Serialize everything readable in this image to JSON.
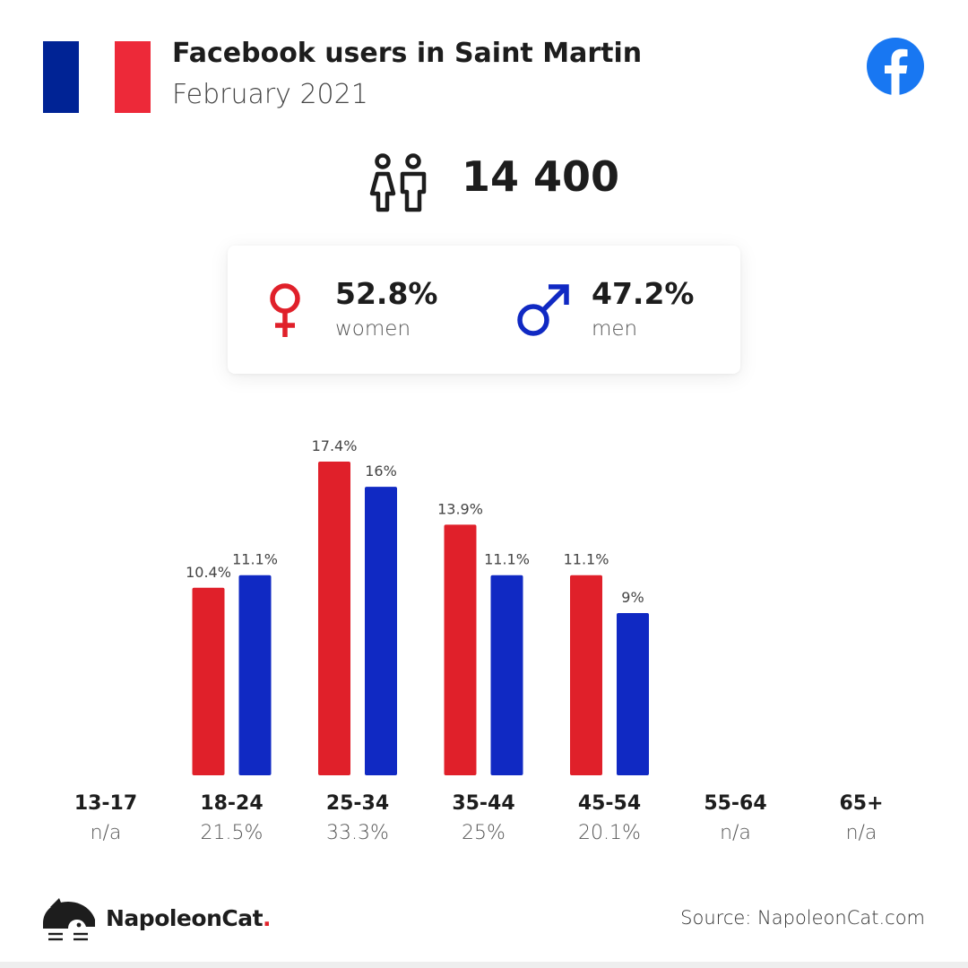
{
  "header": {
    "title": "Facebook users in Saint Martin",
    "subtitle": "February 2021",
    "flag_colors": [
      "#002395",
      "#ffffff",
      "#ed2939"
    ],
    "social_icon": "facebook-icon",
    "social_color": "#1877f2"
  },
  "total": {
    "icon": "people-icon",
    "value": "14 400"
  },
  "gender": {
    "women": {
      "icon": "venus-icon",
      "percent": "52.8%",
      "label": "women",
      "color": "#e0202a"
    },
    "men": {
      "icon": "mars-icon",
      "percent": "47.2%",
      "label": "men",
      "color": "#1029c3"
    }
  },
  "chart_data": {
    "type": "bar",
    "title": "",
    "xlabel": "",
    "ylabel": "",
    "ylim": [
      0,
      17.4
    ],
    "grid": false,
    "categories": [
      "13-17",
      "18-24",
      "25-34",
      "35-44",
      "45-54",
      "55-64",
      "65+"
    ],
    "category_totals": [
      "n/a",
      "21.5%",
      "33.3%",
      "25%",
      "20.1%",
      "n/a",
      "n/a"
    ],
    "series": [
      {
        "color": "#e0202a",
        "values": [
          null,
          10.4,
          17.4,
          13.9,
          11.1,
          null,
          null
        ],
        "labels": [
          "",
          "10.4%",
          "17.4%",
          "13.9%",
          "11.1%",
          "",
          ""
        ]
      },
      {
        "color": "#1029c3",
        "values": [
          null,
          11.1,
          16,
          11.1,
          9,
          null,
          null
        ],
        "labels": [
          "",
          "11.1%",
          "16%",
          "11.1%",
          "9%",
          "",
          ""
        ]
      }
    ]
  },
  "footer": {
    "brand_icon": "napoleoncat-logo-icon",
    "brand": "NapoleonCat",
    "brand_dot": ".",
    "source": "Source: NapoleonCat.com"
  }
}
